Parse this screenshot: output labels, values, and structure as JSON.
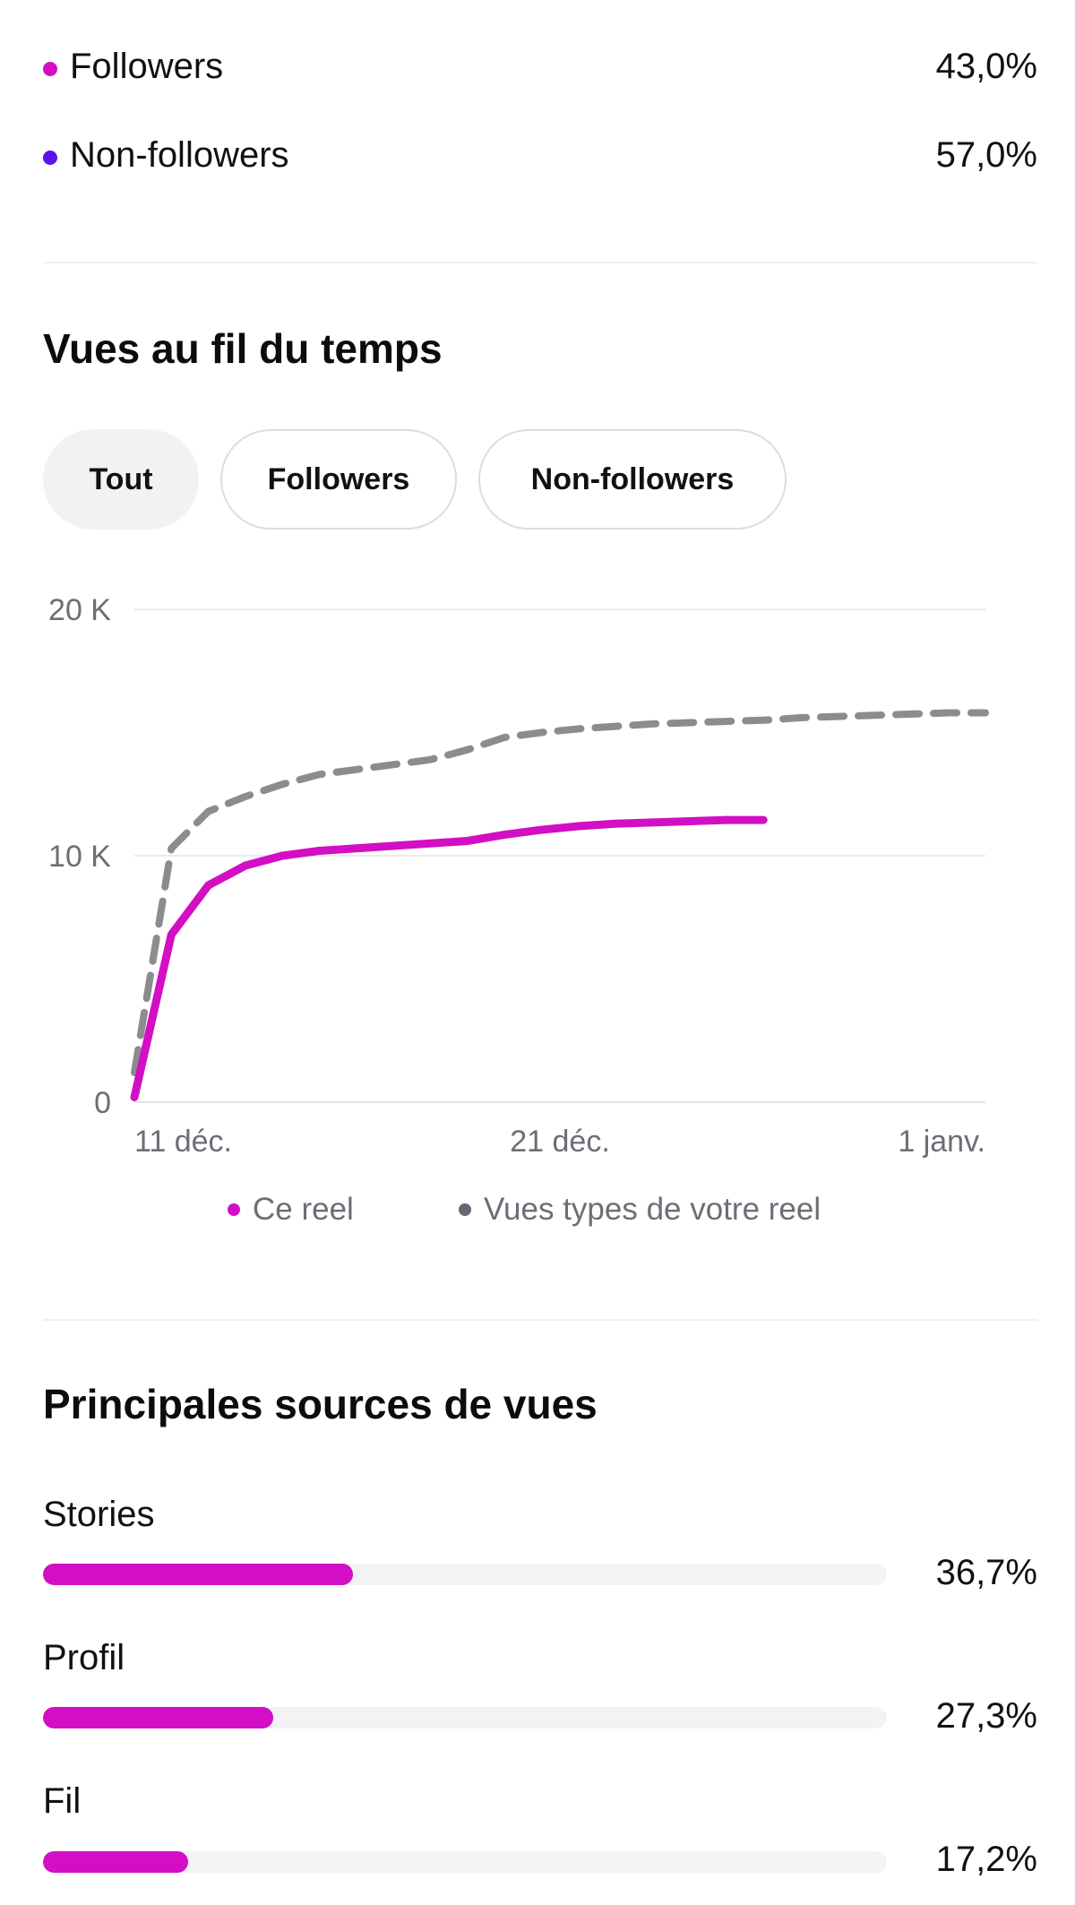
{
  "audience": {
    "rows": [
      {
        "label": "Followers",
        "value": "43,0%",
        "color": "#d30ec4"
      },
      {
        "label": "Non-followers",
        "value": "57,0%",
        "color": "#5b14e6"
      }
    ]
  },
  "views_over_time": {
    "title": "Vues au fil du temps",
    "filters": [
      {
        "label": "Tout",
        "active": true
      },
      {
        "label": "Followers",
        "active": false
      },
      {
        "label": "Non-followers",
        "active": false
      }
    ],
    "legend": [
      {
        "label": "Ce reel",
        "color": "#d30ec4"
      },
      {
        "label": "Vues types de votre reel",
        "color": "#626870"
      }
    ]
  },
  "chart_data": {
    "type": "line",
    "title": "",
    "xlabel": "",
    "ylabel": "",
    "x_tick_labels": [
      "11 déc.",
      "21 déc.",
      "1 janv."
    ],
    "y_tick_labels": [
      "0",
      "10 K",
      "20 K"
    ],
    "y_ticks": [
      0,
      10000,
      20000
    ],
    "ylim": [
      0,
      20000
    ],
    "xlim": [
      0,
      23
    ],
    "grid": true,
    "legend_position": "bottom",
    "series": [
      {
        "name": "Ce reel",
        "color": "#d30ec4",
        "style": "solid",
        "x": [
          0,
          1,
          2,
          3,
          4,
          5,
          6,
          7,
          8,
          9,
          10,
          11,
          12,
          13,
          14,
          15,
          16,
          17
        ],
        "y": [
          200,
          6800,
          8800,
          9600,
          10000,
          10200,
          10300,
          10400,
          10500,
          10600,
          10850,
          11050,
          11200,
          11300,
          11350,
          11400,
          11450,
          11450
        ]
      },
      {
        "name": "Vues types de votre reel",
        "color": "#8c8c8e",
        "style": "dashed",
        "x": [
          0,
          1,
          2,
          3,
          4,
          5,
          6,
          7,
          8,
          9,
          10,
          11,
          12,
          13,
          14,
          15,
          16,
          17,
          18,
          19,
          20,
          21,
          22,
          23
        ],
        "y": [
          1200,
          10300,
          11800,
          12400,
          12900,
          13300,
          13500,
          13700,
          13900,
          14300,
          14800,
          15000,
          15150,
          15250,
          15350,
          15400,
          15450,
          15500,
          15600,
          15650,
          15700,
          15750,
          15800,
          15800
        ]
      }
    ]
  },
  "sources": {
    "title": "Principales sources de vues",
    "bar_color": "#d30ec4",
    "items": [
      {
        "label": "Stories",
        "value": "36,7%",
        "fraction": 0.367
      },
      {
        "label": "Profil",
        "value": "27,3%",
        "fraction": 0.273
      },
      {
        "label": "Fil",
        "value": "17,2%",
        "fraction": 0.172
      }
    ]
  }
}
